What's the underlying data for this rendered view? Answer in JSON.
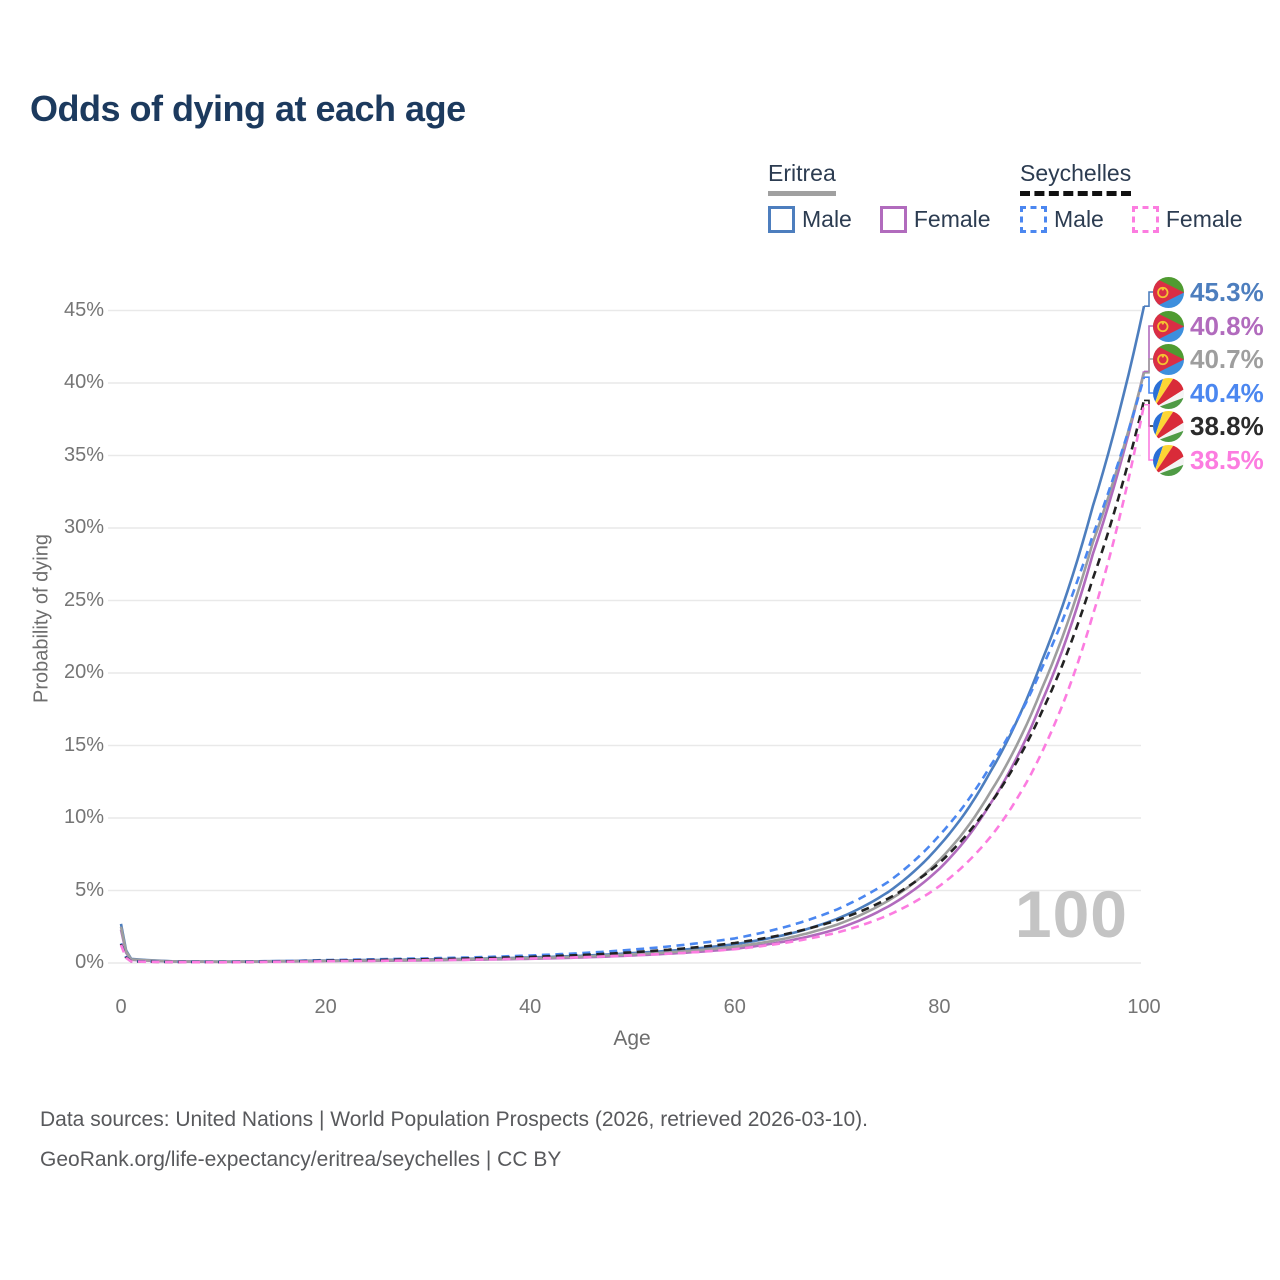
{
  "title": "Odds of dying at each age",
  "legend": {
    "groups": [
      {
        "name": "Eritrea",
        "line_style": "solid",
        "underline_color": "#a0a0a0",
        "items": [
          {
            "label": "Male",
            "color": "#4d7ebe",
            "dash": false
          },
          {
            "label": "Female",
            "color": "#b16bbd",
            "dash": false
          }
        ]
      },
      {
        "name": "Seychelles",
        "line_style": "dashed",
        "underline_color": "#111111",
        "items": [
          {
            "label": "Male",
            "color": "#4b87f0",
            "dash": true
          },
          {
            "label": "Female",
            "color": "#fc7ce0",
            "dash": true
          }
        ]
      }
    ]
  },
  "watermark": "100",
  "footer": {
    "line1": "Data sources: United Nations | World Population Prospects (2026, retrieved 2026-03-10).",
    "line2": "GeoRank.org/life-expectancy/eritrea/seychelles | CC BY"
  },
  "chart_data": {
    "type": "line",
    "title": "Odds of dying at each age",
    "xlabel": "Age",
    "ylabel": "Probability of dying",
    "x_ticks": [
      0,
      20,
      40,
      60,
      80,
      100
    ],
    "y_tick_labels": [
      "0%",
      "5%",
      "10%",
      "15%",
      "20%",
      "25%",
      "30%",
      "35%",
      "40%",
      "45%"
    ],
    "y_tick_values": [
      0,
      5,
      10,
      15,
      20,
      25,
      30,
      35,
      40,
      45
    ],
    "xlim": [
      0,
      100
    ],
    "ylim_pct": [
      0,
      45
    ],
    "grid": "horizontal",
    "ages": [
      0,
      1,
      5,
      10,
      15,
      20,
      25,
      30,
      35,
      40,
      45,
      50,
      55,
      60,
      65,
      70,
      75,
      80,
      85,
      90,
      95,
      100
    ],
    "series": [
      {
        "name": "Eritrea Male",
        "country": "Eritrea",
        "sex": "male",
        "color": "#4d7ebe",
        "dash": "solid",
        "flag": "eritrea",
        "end_label": "45.3%",
        "label_color": "#4d7ebe",
        "row": 0,
        "values_pct": [
          2.7,
          0.28,
          0.12,
          0.1,
          0.13,
          0.17,
          0.21,
          0.25,
          0.3,
          0.38,
          0.5,
          0.68,
          0.92,
          1.3,
          1.95,
          3.05,
          4.9,
          8.1,
          13.2,
          20.8,
          31.5,
          45.3
        ]
      },
      {
        "name": "Eritrea Female",
        "country": "Eritrea",
        "sex": "female",
        "color": "#b16bbd",
        "dash": "solid",
        "flag": "eritrea",
        "end_label": "40.8%",
        "label_color": "#b16bbd",
        "row": 1,
        "values_pct": [
          2.3,
          0.22,
          0.1,
          0.08,
          0.1,
          0.13,
          0.15,
          0.18,
          0.23,
          0.29,
          0.38,
          0.52,
          0.7,
          0.98,
          1.5,
          2.35,
          3.9,
          6.5,
          11.0,
          18.0,
          28.2,
          40.8
        ]
      },
      {
        "name": "Eritrea Both",
        "country": "Eritrea",
        "sex": "both",
        "color": "#9e9e9e",
        "dash": "solid",
        "flag": "eritrea",
        "end_label": "40.7%",
        "label_color": "#9e9e9e",
        "row": 2,
        "values_pct": [
          2.5,
          0.25,
          0.11,
          0.09,
          0.12,
          0.15,
          0.18,
          0.22,
          0.27,
          0.33,
          0.44,
          0.6,
          0.8,
          1.12,
          1.7,
          2.65,
          4.3,
          7.1,
          11.8,
          18.9,
          29.0,
          40.7
        ]
      },
      {
        "name": "Seychelles Male",
        "country": "Seychelles",
        "sex": "male",
        "color": "#4b87f0",
        "dash": "dashed",
        "flag": "seychelles",
        "end_label": "40.4%",
        "label_color": "#4b87f0",
        "row": 3,
        "values_pct": [
          1.35,
          0.12,
          0.08,
          0.07,
          0.12,
          0.2,
          0.26,
          0.32,
          0.4,
          0.52,
          0.68,
          0.92,
          1.25,
          1.7,
          2.5,
          3.7,
          5.6,
          8.8,
          13.6,
          20.3,
          29.5,
          40.4
        ]
      },
      {
        "name": "Seychelles Both",
        "country": "Seychelles",
        "sex": "both",
        "color": "#222222",
        "dash": "dashed",
        "flag": "seychelles",
        "end_label": "38.8%",
        "label_color": "#2b2b2b",
        "row": 4,
        "values_pct": [
          1.3,
          0.11,
          0.07,
          0.06,
          0.1,
          0.16,
          0.21,
          0.26,
          0.33,
          0.42,
          0.55,
          0.74,
          1.0,
          1.38,
          2.0,
          2.95,
          4.45,
          6.9,
          11.0,
          17.3,
          26.5,
          38.8
        ]
      },
      {
        "name": "Seychelles Female",
        "country": "Seychelles",
        "sex": "female",
        "color": "#fc7ce0",
        "dash": "dashed",
        "flag": "seychelles",
        "end_label": "38.5%",
        "label_color": "#fc7ce0",
        "row": 5,
        "values_pct": [
          1.25,
          0.1,
          0.06,
          0.05,
          0.08,
          0.12,
          0.15,
          0.19,
          0.24,
          0.31,
          0.4,
          0.53,
          0.7,
          0.95,
          1.4,
          2.1,
          3.3,
          5.3,
          8.7,
          14.5,
          24.0,
          38.5
        ]
      }
    ]
  }
}
